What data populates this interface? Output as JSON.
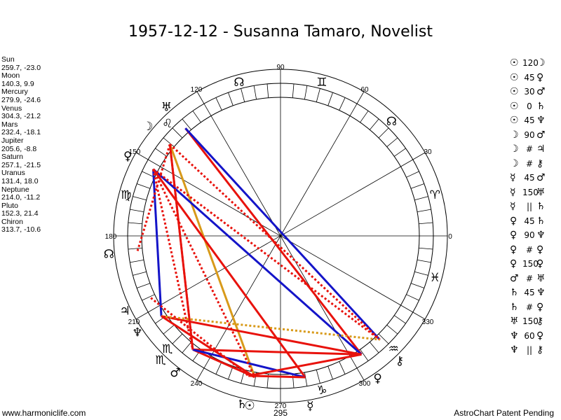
{
  "title": "1957-12-12 - Susanna Tamaro, Novelist",
  "footer": {
    "website": "www.harmoniclife.com",
    "credit": "AstroChart Patent Pending"
  },
  "planets": [
    {
      "name": "Sun",
      "coords": "259.7, -23.0"
    },
    {
      "name": "Moon",
      "coords": "140.3, 9.9"
    },
    {
      "name": "Mercury",
      "coords": "279.9, -24.6"
    },
    {
      "name": "Venus",
      "coords": "304.3, -21.2"
    },
    {
      "name": "Mars",
      "coords": "232.4, -18.1"
    },
    {
      "name": "Jupiter",
      "coords": "205.6, -8.8"
    },
    {
      "name": "Saturn",
      "coords": "257.1, -21.5"
    },
    {
      "name": "Uranus",
      "coords": "131.4, 18.0"
    },
    {
      "name": "Neptune",
      "coords": "214.0, -11.2"
    },
    {
      "name": "Pluto",
      "coords": "152.3, 21.4"
    },
    {
      "name": "Chiron",
      "coords": "313.7, -10.6"
    }
  ],
  "aspects": [
    {
      "p1": "☉",
      "aspect": "120",
      "p2": "☽"
    },
    {
      "p1": "☉",
      "aspect": "45",
      "p2": "♀"
    },
    {
      "p1": "☉",
      "aspect": "30",
      "p2": "♂"
    },
    {
      "p1": "☉",
      "aspect": "0",
      "p2": "♄"
    },
    {
      "p1": "☉",
      "aspect": "45",
      "p2": "♆"
    },
    {
      "p1": "☽",
      "aspect": "90",
      "p2": "♂"
    },
    {
      "p1": "☽",
      "aspect": "#",
      "p2": "♃"
    },
    {
      "p1": "☽",
      "aspect": "#",
      "p2": "⚷"
    },
    {
      "p1": "☿",
      "aspect": "45",
      "p2": "♂"
    },
    {
      "p1": "☿",
      "aspect": "150",
      "p2": "♅"
    },
    {
      "p1": "☿",
      "aspect": "||",
      "p2": "♄"
    },
    {
      "p1": "♀",
      "aspect": "45",
      "p2": "♄"
    },
    {
      "p1": "♀",
      "aspect": "90",
      "p2": "♆"
    },
    {
      "p1": "♀",
      "aspect": "#",
      "p2": "♀"
    },
    {
      "p1": "♀",
      "aspect": "150",
      "p2": "♀"
    },
    {
      "p1": "♂",
      "aspect": "#",
      "p2": "♅"
    },
    {
      "p1": "♄",
      "aspect": "45",
      "p2": "♆"
    },
    {
      "p1": "♄",
      "aspect": "#",
      "p2": "♀"
    },
    {
      "p1": "♅",
      "aspect": "150",
      "p2": "⚷"
    },
    {
      "p1": "♆",
      "aspect": "60",
      "p2": "♀"
    },
    {
      "p1": "♆",
      "aspect": "||",
      "p2": "⚷"
    }
  ],
  "chart_data": {
    "type": "astrological wheel",
    "degree_labels": [
      "0",
      "30",
      "60",
      "90",
      "120",
      "150",
      "180",
      "210",
      "240",
      "270",
      "295",
      "300",
      "330"
    ],
    "signs": [
      {
        "glyph": "♈",
        "lon": 15
      },
      {
        "glyph": "♊",
        "lon": 75
      },
      {
        "glyph": "♌",
        "lon": 135
      },
      {
        "glyph": "♍",
        "lon": 165
      },
      {
        "glyph": "♏",
        "lon": 225
      },
      {
        "glyph": "♑",
        "lon": 285
      },
      {
        "glyph": "♒",
        "lon": 315
      },
      {
        "glyph": "♓",
        "lon": 345
      }
    ],
    "extra_glyphs": [
      {
        "glyph": "☊",
        "lon": 105
      },
      {
        "glyph": "☊",
        "lon": 46
      }
    ],
    "bodies": [
      {
        "glyph": "☉",
        "lon": 259.7
      },
      {
        "glyph": "☽",
        "lon": 140.3
      },
      {
        "glyph": "☿",
        "lon": 279.9
      },
      {
        "glyph": "♀",
        "lon": 304.3
      },
      {
        "glyph": "♂",
        "lon": 232.4
      },
      {
        "glyph": "♃",
        "lon": 205.6
      },
      {
        "glyph": "♄",
        "lon": 257.1
      },
      {
        "glyph": "♅",
        "lon": 131.4
      },
      {
        "glyph": "♆",
        "lon": 214.0
      },
      {
        "glyph": "♀",
        "lon": 152.3
      },
      {
        "glyph": "⚷",
        "lon": 313.7
      },
      {
        "glyph": "☊",
        "lon": 186
      },
      {
        "glyph": "♏",
        "lon": 226
      }
    ],
    "aspect_lines": [
      {
        "from": 131.4,
        "to": 304.3,
        "color": "#e8120c",
        "style": "solid"
      },
      {
        "from": 131.4,
        "to": 313.7,
        "color": "#1414c8",
        "style": "solid"
      },
      {
        "from": 140.3,
        "to": 259.7,
        "color": "#d89a1a",
        "style": "solid"
      },
      {
        "from": 140.3,
        "to": 232.4,
        "color": "#e8120c",
        "style": "solid"
      },
      {
        "from": 140.3,
        "to": 313.7,
        "color": "#e8120c",
        "style": "dotted"
      },
      {
        "from": 152.3,
        "to": 304.3,
        "color": "#1414c8",
        "style": "solid"
      },
      {
        "from": 152.3,
        "to": 214.0,
        "color": "#1414c8",
        "style": "solid"
      },
      {
        "from": 152.3,
        "to": 279.9,
        "color": "#e8120c",
        "style": "solid"
      },
      {
        "from": 152.3,
        "to": 232.4,
        "color": "#e8120c",
        "style": "dotted"
      },
      {
        "from": 152.3,
        "to": 313.7,
        "color": "#e8120c",
        "style": "dotted"
      },
      {
        "from": 232.4,
        "to": 304.3,
        "color": "#e8120c",
        "style": "solid"
      },
      {
        "from": 232.4,
        "to": 259.7,
        "color": "#e8120c",
        "style": "solid"
      },
      {
        "from": 232.4,
        "to": 279.9,
        "color": "#1414c8",
        "style": "solid"
      },
      {
        "from": 214.0,
        "to": 304.3,
        "color": "#e8120c",
        "style": "solid"
      },
      {
        "from": 214.0,
        "to": 313.7,
        "color": "#d89a1a",
        "style": "dotted"
      },
      {
        "from": 214.0,
        "to": 259.7,
        "color": "#e8120c",
        "style": "solid"
      },
      {
        "from": 257.1,
        "to": 304.3,
        "color": "#e8120c",
        "style": "solid"
      },
      {
        "from": 257.1,
        "to": 279.9,
        "color": "#e8120c",
        "style": "solid"
      },
      {
        "from": 205.6,
        "to": 257.1,
        "color": "#e8120c",
        "style": "dotted"
      },
      {
        "from": 186,
        "to": 140.3,
        "color": "#e8120c",
        "style": "dotted"
      },
      {
        "from": 232.4,
        "to": 140.3,
        "color": "#e8120c",
        "style": "dotted"
      },
      {
        "from": 152.3,
        "to": 259.7,
        "color": "#e8120c",
        "style": "dotted"
      }
    ]
  }
}
